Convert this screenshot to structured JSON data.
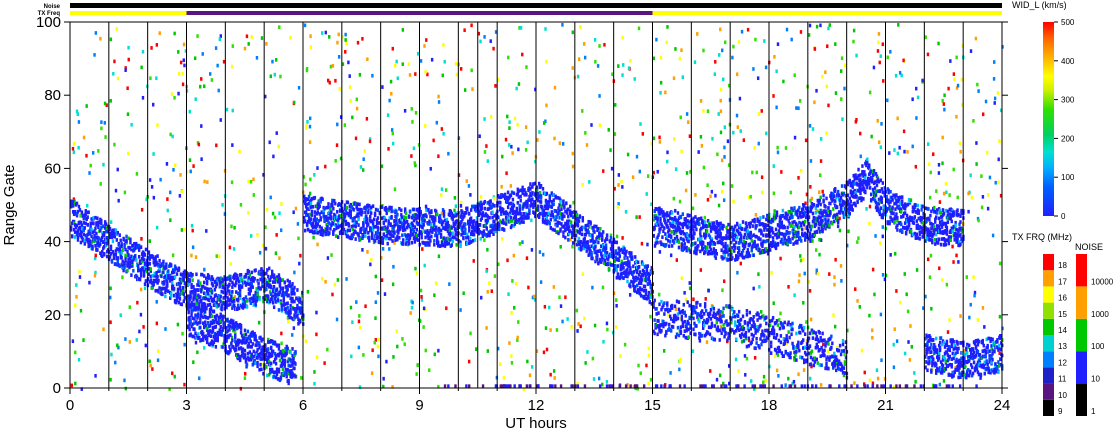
{
  "chart_data": {
    "type": "heatmap",
    "title": "",
    "xlabel": "UT hours",
    "ylabel": "Range Gate",
    "xlim": [
      0,
      24
    ],
    "ylim": [
      0,
      100
    ],
    "x_ticks": [
      "0",
      "3",
      "6",
      "9",
      "12",
      "15",
      "18",
      "21",
      "24"
    ],
    "y_ticks": [
      "0",
      "20",
      "40",
      "60",
      "80",
      "100"
    ],
    "top_strips": {
      "noise_label": "Noise",
      "txfreq_label": "TX Freq",
      "txfreq_segments": [
        {
          "start": 0,
          "end": 3,
          "color": "#ffff00"
        },
        {
          "start": 3,
          "end": 15,
          "color": "#5a1480"
        },
        {
          "start": 15,
          "end": 24,
          "color": "#ffff00"
        }
      ]
    },
    "vertical_lines_ut": [
      1,
      2,
      3,
      4,
      5,
      6,
      7,
      8,
      9,
      10,
      10.5,
      11,
      12,
      13,
      14,
      15,
      16,
      17,
      18,
      19,
      20,
      21,
      22,
      23
    ],
    "main_colorbar": {
      "title": "WID_L (km/s)",
      "range": [
        0,
        500
      ],
      "ticks": [
        "0",
        "100",
        "200",
        "300",
        "400",
        "500"
      ]
    },
    "txfreq_colorbar": {
      "title": "TX FRQ (MHz)",
      "ticks": [
        "9",
        "10",
        "11",
        "12",
        "13",
        "14",
        "15",
        "16",
        "17",
        "18"
      ],
      "colors": [
        "#000000",
        "#5a1480",
        "#2020c8",
        "#0080ff",
        "#00d0d0",
        "#00c800",
        "#90e000",
        "#ffff00",
        "#ffa000",
        "#ff0000"
      ]
    },
    "noise_colorbar": {
      "title": "NOISE",
      "ticks": [
        "1",
        "10",
        "100",
        "1000",
        "10000"
      ],
      "colors": [
        "#000000",
        "#2020ff",
        "#00c800",
        "#ffa000",
        "#ff0000"
      ]
    },
    "echo_bands": [
      {
        "description_ut_gate": [
          [
            0,
            47
          ],
          [
            1,
            40
          ],
          [
            2,
            33
          ],
          [
            3,
            27
          ],
          [
            4,
            26
          ],
          [
            5,
            29
          ],
          [
            6,
            22
          ]
        ],
        "strength": "high"
      },
      {
        "description_ut_gate": [
          [
            3,
            20
          ],
          [
            4,
            15
          ],
          [
            5,
            9
          ],
          [
            5.8,
            6
          ]
        ],
        "strength": "high"
      },
      {
        "description_ut_gate": [
          [
            6,
            48
          ],
          [
            8,
            45
          ],
          [
            10,
            44
          ],
          [
            12,
            52
          ],
          [
            13,
            44
          ],
          [
            14,
            36
          ],
          [
            15,
            28
          ]
        ],
        "strength": "high"
      },
      {
        "description_ut_gate": [
          [
            15,
            20
          ],
          [
            17,
            18
          ],
          [
            19,
            12
          ],
          [
            20,
            8
          ]
        ],
        "strength": "medium"
      },
      {
        "description_ut_gate": [
          [
            15,
            45
          ],
          [
            17,
            40
          ],
          [
            19,
            46
          ],
          [
            20,
            52
          ],
          [
            20.5,
            58
          ],
          [
            21,
            50
          ],
          [
            22,
            45
          ],
          [
            23,
            44
          ]
        ],
        "strength": "high"
      },
      {
        "description_ut_gate": [
          [
            22,
            10
          ],
          [
            23,
            8
          ],
          [
            24,
            10
          ]
        ],
        "strength": "high"
      }
    ]
  }
}
